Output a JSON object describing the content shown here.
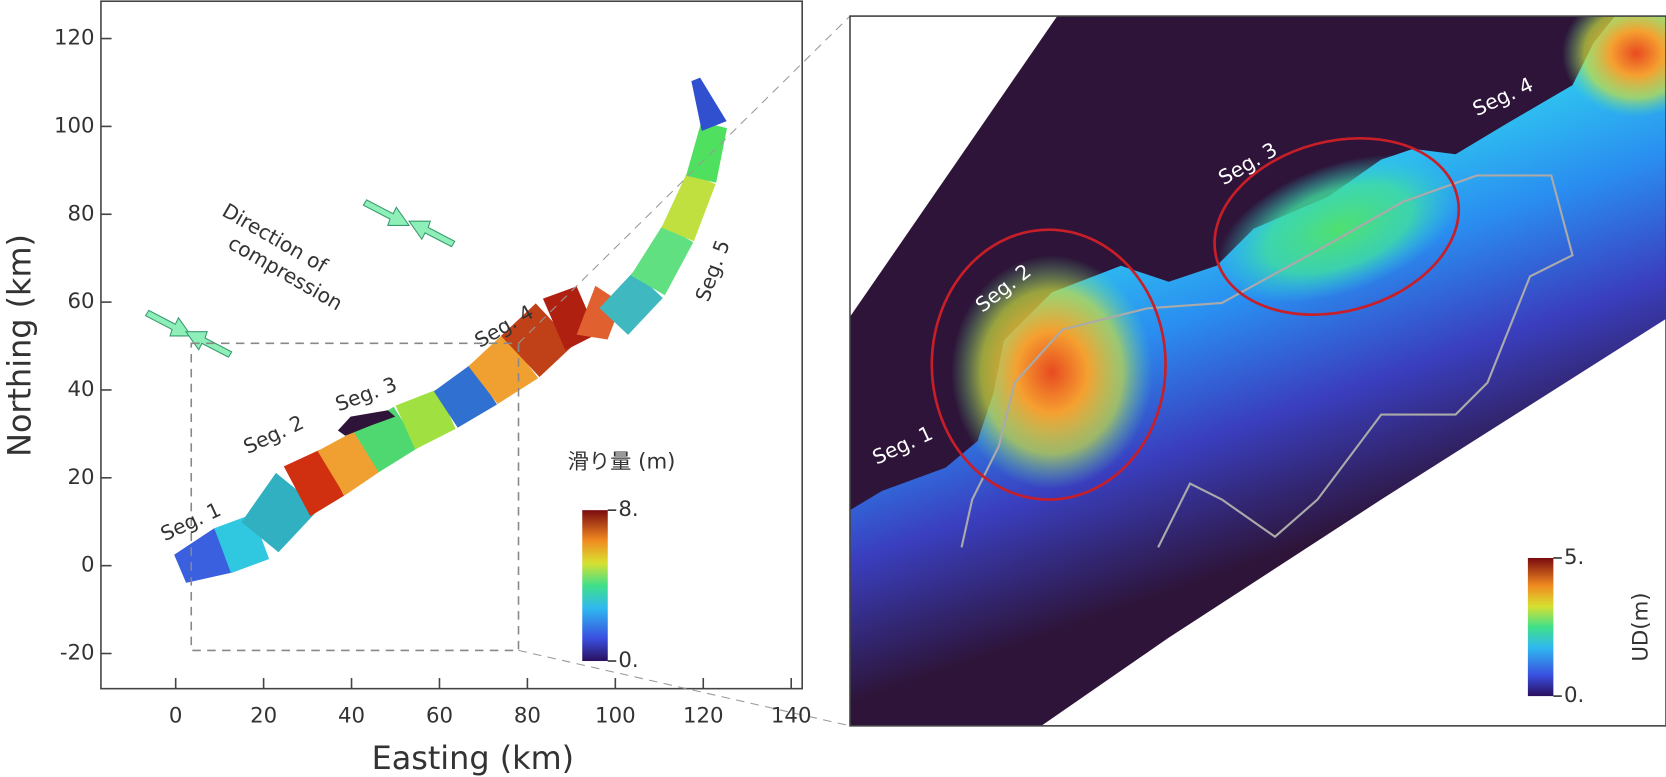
{
  "chart_data": [
    {
      "type": "map",
      "xlabel": "Easting (km)",
      "ylabel": "Northing (km)",
      "xlim": [
        -17,
        142.5
      ],
      "ylim": [
        -28,
        128.5
      ],
      "xticks": [
        0,
        20,
        40,
        60,
        80,
        100,
        120,
        140
      ],
      "yticks": [
        -20,
        0,
        20,
        40,
        60,
        80,
        100,
        120
      ],
      "annotations": [
        "Seg. 1",
        "Seg. 2",
        "Seg. 3",
        "Seg. 4",
        "Seg. 5",
        "Direction of",
        "compression"
      ],
      "colorbar": {
        "title": "滑り量 (m)",
        "lim": [
          0,
          8
        ],
        "ticks": [
          {
            "value": 0,
            "label": "0."
          },
          {
            "value": 8,
            "label": "8."
          }
        ]
      }
    },
    {
      "type": "map",
      "annotations": [
        "Seg. 1",
        "Seg. 2",
        "Seg. 3",
        "Seg. 4"
      ],
      "colorbar": {
        "title": "UD(m)",
        "lim": [
          0,
          5
        ],
        "ticks": [
          {
            "value": 0,
            "label": "0."
          },
          {
            "value": 5,
            "label": "5."
          }
        ]
      }
    }
  ]
}
